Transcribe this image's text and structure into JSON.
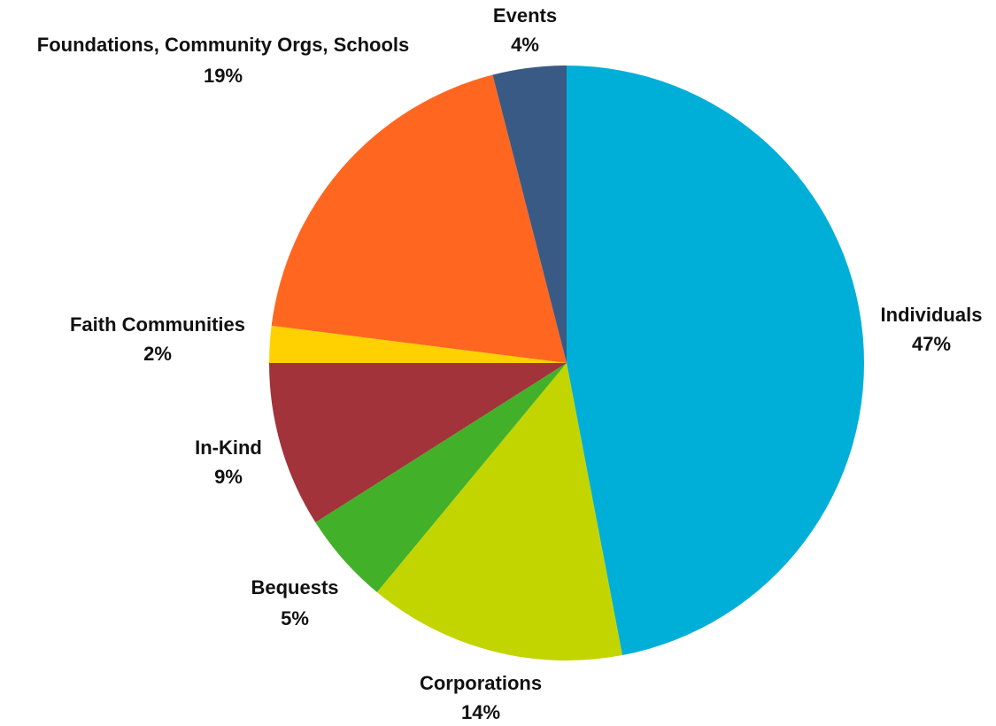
{
  "chart_data": {
    "type": "pie",
    "start_angle_deg": 0,
    "direction": "clockwise",
    "slices": [
      {
        "name": "Individuals",
        "value_label": "47%",
        "value": 47,
        "color": "#00AFD8"
      },
      {
        "name": "Corporations",
        "value_label": "14%",
        "value": 14,
        "color": "#C2D500"
      },
      {
        "name": "Bequests",
        "value_label": "5%",
        "value": 5,
        "color": "#43B02A"
      },
      {
        "name": "In-Kind",
        "value_label": "9%",
        "value": 9,
        "color": "#A2333A"
      },
      {
        "name": "Faith Communities",
        "value_label": "2%",
        "value": 2,
        "color": "#FFD100"
      },
      {
        "name": "Foundations, Community Orgs, Schools",
        "value_label": "19%",
        "value": 19,
        "color": "#FF6720"
      },
      {
        "name": "Events",
        "value_label": "4%",
        "value": 4,
        "color": "#3A5A86"
      }
    ]
  }
}
